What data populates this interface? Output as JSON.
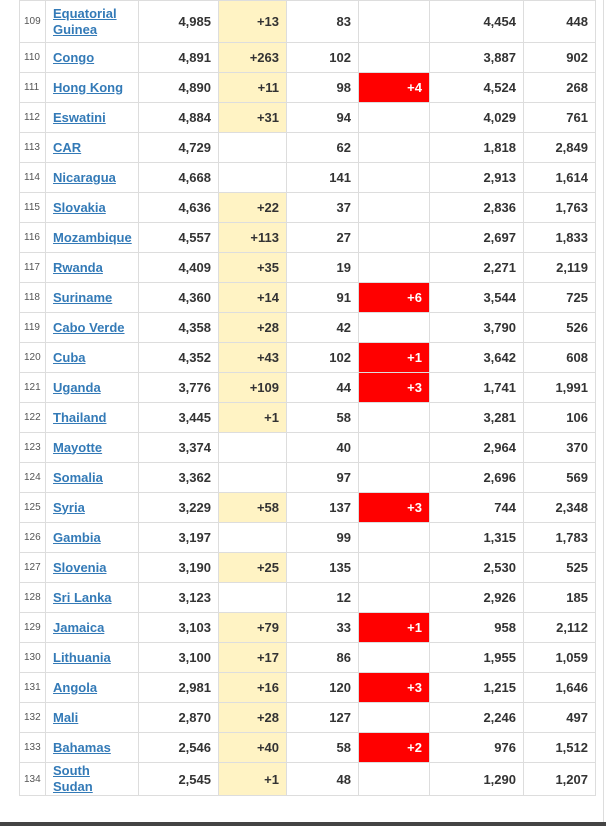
{
  "table": {
    "rows": [
      {
        "rank": "109",
        "country": "Equatorial Guinea",
        "total_cases": "4,985",
        "new_cases": "+13",
        "total_deaths": "83",
        "new_deaths": "",
        "total_recovered": "4,454",
        "active_cases": "448"
      },
      {
        "rank": "110",
        "country": "Congo",
        "total_cases": "4,891",
        "new_cases": "+263",
        "total_deaths": "102",
        "new_deaths": "",
        "total_recovered": "3,887",
        "active_cases": "902"
      },
      {
        "rank": "111",
        "country": "Hong Kong",
        "total_cases": "4,890",
        "new_cases": "+11",
        "total_deaths": "98",
        "new_deaths": "+4",
        "total_recovered": "4,524",
        "active_cases": "268"
      },
      {
        "rank": "112",
        "country": "Eswatini",
        "total_cases": "4,884",
        "new_cases": "+31",
        "total_deaths": "94",
        "new_deaths": "",
        "total_recovered": "4,029",
        "active_cases": "761"
      },
      {
        "rank": "113",
        "country": "CAR",
        "total_cases": "4,729",
        "new_cases": "",
        "total_deaths": "62",
        "new_deaths": "",
        "total_recovered": "1,818",
        "active_cases": "2,849"
      },
      {
        "rank": "114",
        "country": "Nicaragua",
        "total_cases": "4,668",
        "new_cases": "",
        "total_deaths": "141",
        "new_deaths": "",
        "total_recovered": "2,913",
        "active_cases": "1,614"
      },
      {
        "rank": "115",
        "country": "Slovakia",
        "total_cases": "4,636",
        "new_cases": "+22",
        "total_deaths": "37",
        "new_deaths": "",
        "total_recovered": "2,836",
        "active_cases": "1,763"
      },
      {
        "rank": "116",
        "country": "Mozambique",
        "total_cases": "4,557",
        "new_cases": "+113",
        "total_deaths": "27",
        "new_deaths": "",
        "total_recovered": "2,697",
        "active_cases": "1,833"
      },
      {
        "rank": "117",
        "country": "Rwanda",
        "total_cases": "4,409",
        "new_cases": "+35",
        "total_deaths": "19",
        "new_deaths": "",
        "total_recovered": "2,271",
        "active_cases": "2,119"
      },
      {
        "rank": "118",
        "country": "Suriname",
        "total_cases": "4,360",
        "new_cases": "+14",
        "total_deaths": "91",
        "new_deaths": "+6",
        "total_recovered": "3,544",
        "active_cases": "725"
      },
      {
        "rank": "119",
        "country": "Cabo Verde",
        "total_cases": "4,358",
        "new_cases": "+28",
        "total_deaths": "42",
        "new_deaths": "",
        "total_recovered": "3,790",
        "active_cases": "526"
      },
      {
        "rank": "120",
        "country": "Cuba",
        "total_cases": "4,352",
        "new_cases": "+43",
        "total_deaths": "102",
        "new_deaths": "+1",
        "total_recovered": "3,642",
        "active_cases": "608"
      },
      {
        "rank": "121",
        "country": "Uganda",
        "total_cases": "3,776",
        "new_cases": "+109",
        "total_deaths": "44",
        "new_deaths": "+3",
        "total_recovered": "1,741",
        "active_cases": "1,991"
      },
      {
        "rank": "122",
        "country": "Thailand",
        "total_cases": "3,445",
        "new_cases": "+1",
        "total_deaths": "58",
        "new_deaths": "",
        "total_recovered": "3,281",
        "active_cases": "106"
      },
      {
        "rank": "123",
        "country": "Mayotte",
        "total_cases": "3,374",
        "new_cases": "",
        "total_deaths": "40",
        "new_deaths": "",
        "total_recovered": "2,964",
        "active_cases": "370"
      },
      {
        "rank": "124",
        "country": "Somalia",
        "total_cases": "3,362",
        "new_cases": "",
        "total_deaths": "97",
        "new_deaths": "",
        "total_recovered": "2,696",
        "active_cases": "569"
      },
      {
        "rank": "125",
        "country": "Syria",
        "total_cases": "3,229",
        "new_cases": "+58",
        "total_deaths": "137",
        "new_deaths": "+3",
        "total_recovered": "744",
        "active_cases": "2,348"
      },
      {
        "rank": "126",
        "country": "Gambia",
        "total_cases": "3,197",
        "new_cases": "",
        "total_deaths": "99",
        "new_deaths": "",
        "total_recovered": "1,315",
        "active_cases": "1,783"
      },
      {
        "rank": "127",
        "country": "Slovenia",
        "total_cases": "3,190",
        "new_cases": "+25",
        "total_deaths": "135",
        "new_deaths": "",
        "total_recovered": "2,530",
        "active_cases": "525"
      },
      {
        "rank": "128",
        "country": "Sri Lanka",
        "total_cases": "3,123",
        "new_cases": "",
        "total_deaths": "12",
        "new_deaths": "",
        "total_recovered": "2,926",
        "active_cases": "185"
      },
      {
        "rank": "129",
        "country": "Jamaica",
        "total_cases": "3,103",
        "new_cases": "+79",
        "total_deaths": "33",
        "new_deaths": "+1",
        "total_recovered": "958",
        "active_cases": "2,112"
      },
      {
        "rank": "130",
        "country": "Lithuania",
        "total_cases": "3,100",
        "new_cases": "+17",
        "total_deaths": "86",
        "new_deaths": "",
        "total_recovered": "1,955",
        "active_cases": "1,059"
      },
      {
        "rank": "131",
        "country": "Angola",
        "total_cases": "2,981",
        "new_cases": "+16",
        "total_deaths": "120",
        "new_deaths": "+3",
        "total_recovered": "1,215",
        "active_cases": "1,646"
      },
      {
        "rank": "132",
        "country": "Mali",
        "total_cases": "2,870",
        "new_cases": "+28",
        "total_deaths": "127",
        "new_deaths": "",
        "total_recovered": "2,246",
        "active_cases": "497"
      },
      {
        "rank": "133",
        "country": "Bahamas",
        "total_cases": "2,546",
        "new_cases": "+40",
        "total_deaths": "58",
        "new_deaths": "+2",
        "total_recovered": "976",
        "active_cases": "1,512"
      },
      {
        "rank": "134",
        "country": "South Sudan",
        "total_cases": "2,545",
        "new_cases": "+1",
        "total_deaths": "48",
        "new_deaths": "",
        "total_recovered": "1,290",
        "active_cases": "1,207"
      }
    ]
  },
  "colors": {
    "link": "#337ab7",
    "new_cases_bg": "#fff3c4",
    "new_deaths_bg": "#ff0000"
  }
}
